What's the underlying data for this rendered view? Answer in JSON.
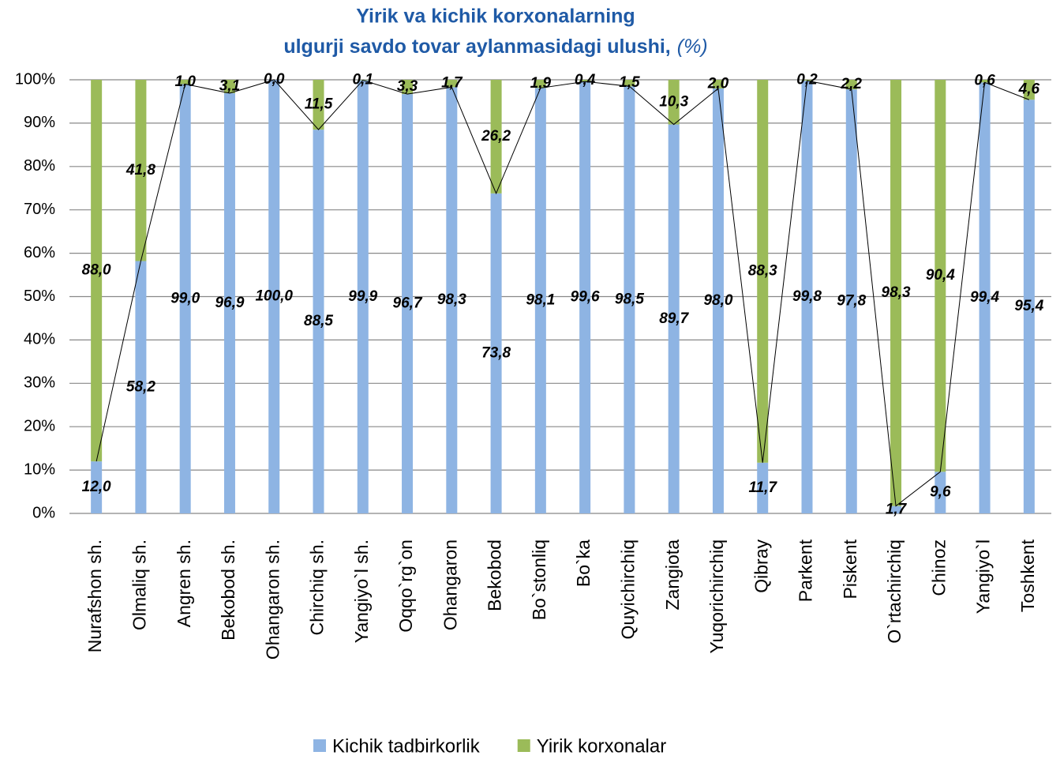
{
  "chart_data": {
    "type": "bar",
    "stacked": true,
    "title_lines": [
      "Yirik va kichik korxonalarning",
      "ulgurji savdo tovar aylanmasidagi ulushi,"
    ],
    "title_unit": "(%)",
    "categories": [
      "Nurafshon sh.",
      "Olmaliq sh.",
      "Angren sh.",
      "Bekobod sh.",
      "Ohangaron sh.",
      "Chirchiq sh.",
      "Yangiyo`l sh.",
      "Oqqo`rg`on",
      "Ohangaron",
      "Bekobod",
      "Bo`stonliq",
      "Bo`ka",
      "Quyichirchiq",
      "Zangiota",
      "Yuqorichirchiq",
      "Qibray",
      "Parkent",
      "Piskent",
      "O`rtachirchiq",
      "Chinoz",
      "Yangiyo`l",
      "Toshkent"
    ],
    "series": [
      {
        "name": "Kichik tadbirkorlik",
        "color": "#8eb4e3",
        "values": [
          12.0,
          58.2,
          99.0,
          96.9,
          100.0,
          88.5,
          99.9,
          96.7,
          98.3,
          73.8,
          98.1,
          99.6,
          98.5,
          89.7,
          98.0,
          11.7,
          99.8,
          97.8,
          1.7,
          9.6,
          99.4,
          95.4
        ],
        "value_labels": [
          "12,0",
          "58,2",
          "99,0",
          "96,9",
          "100,0",
          "88,5",
          "99,9",
          "96,7",
          "98,3",
          "73,8",
          "98,1",
          "99,6",
          "98,5",
          "89,7",
          "98,0",
          "11,7",
          "99,8",
          "97,8",
          "1,7",
          "9,6",
          "99,4",
          "95,4"
        ]
      },
      {
        "name": "Yirik korxonalar",
        "color": "#9bbb59",
        "values": [
          88.0,
          41.8,
          1.0,
          3.1,
          0.0,
          11.5,
          0.1,
          3.3,
          1.7,
          26.2,
          1.9,
          0.4,
          1.5,
          10.3,
          2.0,
          88.3,
          0.2,
          2.2,
          98.3,
          90.4,
          0.6,
          4.6
        ],
        "value_labels": [
          "88,0",
          "41,8",
          "1,0",
          "3,1",
          "0,0",
          "11,5",
          "0,1",
          "3,3",
          "1,7",
          "26,2",
          "1,9",
          "0,4",
          "1,5",
          "10,3",
          "2,0",
          "88,3",
          "0,2",
          "2,2",
          "98,3",
          "90,4",
          "0,6",
          "4,6"
        ]
      }
    ],
    "ylim": [
      0,
      100
    ],
    "yticks": [
      {
        "value": 0,
        "label": "0%"
      },
      {
        "value": 10,
        "label": "10%"
      },
      {
        "value": 20,
        "label": "20%"
      },
      {
        "value": 30,
        "label": "30%"
      },
      {
        "value": 40,
        "label": "40%"
      },
      {
        "value": 50,
        "label": "50%"
      },
      {
        "value": 60,
        "label": "60%"
      },
      {
        "value": 70,
        "label": "70%"
      },
      {
        "value": 80,
        "label": "80%"
      },
      {
        "value": 90,
        "label": "90%"
      },
      {
        "value": 100,
        "label": "100%"
      }
    ],
    "grid": true,
    "legend": "bottom"
  }
}
